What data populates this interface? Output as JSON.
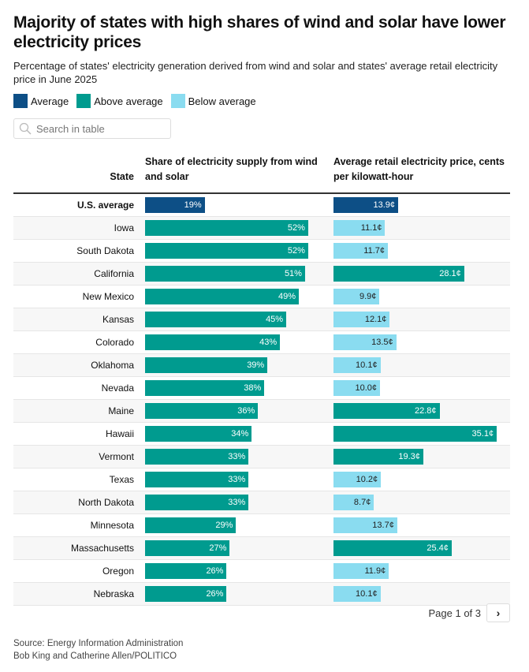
{
  "title": "Majority of states with high shares of wind and solar have lower electricity prices",
  "subtitle": "Percentage of states' electricity generation derived from wind and solar and states' average retail electricity price in June 2025",
  "legend": [
    {
      "label": "Average",
      "color": "#0d4f86"
    },
    {
      "label": "Above average",
      "color": "#009b8f"
    },
    {
      "label": "Below average",
      "color": "#8adcf0"
    }
  ],
  "search": {
    "placeholder": "Search in table",
    "icon": "search-icon"
  },
  "chart_data": {
    "type": "table",
    "columns": [
      "State",
      "Share of electricity supply from wind and solar",
      "Average retail electricity price, cents per kilowatt-hour"
    ],
    "rows": [
      {
        "state": "U.S. average",
        "share": 19,
        "share_cat": "average",
        "price": 13.9,
        "price_cat": "average"
      },
      {
        "state": "Iowa",
        "share": 52,
        "share_cat": "above",
        "price": 11.1,
        "price_cat": "below"
      },
      {
        "state": "South Dakota",
        "share": 52,
        "share_cat": "above",
        "price": 11.7,
        "price_cat": "below"
      },
      {
        "state": "California",
        "share": 51,
        "share_cat": "above",
        "price": 28.1,
        "price_cat": "above"
      },
      {
        "state": "New Mexico",
        "share": 49,
        "share_cat": "above",
        "price": 9.9,
        "price_cat": "below"
      },
      {
        "state": "Kansas",
        "share": 45,
        "share_cat": "above",
        "price": 12.1,
        "price_cat": "below"
      },
      {
        "state": "Colorado",
        "share": 43,
        "share_cat": "above",
        "price": 13.5,
        "price_cat": "below"
      },
      {
        "state": "Oklahoma",
        "share": 39,
        "share_cat": "above",
        "price": 10.1,
        "price_cat": "below"
      },
      {
        "state": "Nevada",
        "share": 38,
        "share_cat": "above",
        "price": 10.0,
        "price_cat": "below"
      },
      {
        "state": "Maine",
        "share": 36,
        "share_cat": "above",
        "price": 22.8,
        "price_cat": "above"
      },
      {
        "state": "Hawaii",
        "share": 34,
        "share_cat": "above",
        "price": 35.1,
        "price_cat": "above"
      },
      {
        "state": "Vermont",
        "share": 33,
        "share_cat": "above",
        "price": 19.3,
        "price_cat": "above"
      },
      {
        "state": "Texas",
        "share": 33,
        "share_cat": "above",
        "price": 10.2,
        "price_cat": "below"
      },
      {
        "state": "North Dakota",
        "share": 33,
        "share_cat": "above",
        "price": 8.7,
        "price_cat": "below"
      },
      {
        "state": "Minnesota",
        "share": 29,
        "share_cat": "above",
        "price": 13.7,
        "price_cat": "below"
      },
      {
        "state": "Massachusetts",
        "share": 27,
        "share_cat": "above",
        "price": 25.4,
        "price_cat": "above"
      },
      {
        "state": "Oregon",
        "share": 26,
        "share_cat": "above",
        "price": 11.9,
        "price_cat": "below"
      },
      {
        "state": "Nebraska",
        "share": 26,
        "share_cat": "above",
        "price": 10.1,
        "price_cat": "below"
      }
    ]
  },
  "pager": {
    "text": "Page 1 of 3",
    "next_icon": "chevron-right-icon"
  },
  "footer": {
    "source": "Source: Energy Information Administration",
    "credit": "Bob King and Catherine Allen/POLITICO"
  }
}
